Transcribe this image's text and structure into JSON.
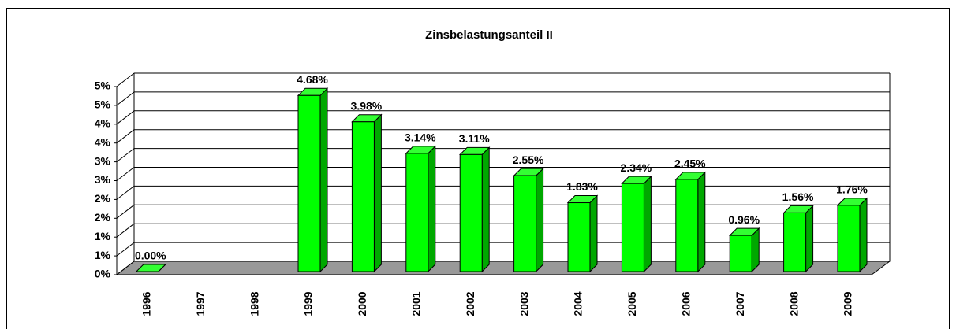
{
  "chart_data": {
    "type": "bar",
    "title": "Zinsbelastungsanteil II",
    "categories": [
      "1996",
      "1997",
      "1998",
      "1999",
      "2000",
      "2001",
      "2002",
      "2003",
      "2004",
      "2005",
      "2006",
      "2007",
      "2008",
      "2009"
    ],
    "values": [
      0.0,
      null,
      null,
      4.68,
      3.98,
      3.14,
      3.11,
      2.55,
      1.83,
      2.34,
      2.45,
      0.96,
      1.56,
      1.76
    ],
    "value_labels": [
      "0.00%",
      null,
      null,
      "4.68%",
      "3.98%",
      "3.14%",
      "3.11%",
      "2.55%",
      "1.83%",
      "2.34%",
      "2.45%",
      "0.96%",
      "1.56%",
      "1.76%"
    ],
    "color": "#00ff00",
    "ylim": [
      0,
      5
    ],
    "yticks": [
      {
        "value": 0,
        "label": "0%"
      },
      {
        "value": 0.5,
        "label": "1%"
      },
      {
        "value": 1,
        "label": "1%"
      },
      {
        "value": 1.5,
        "label": "2%"
      },
      {
        "value": 2,
        "label": "2%"
      },
      {
        "value": 2.5,
        "label": "3%"
      },
      {
        "value": 3,
        "label": "3%"
      },
      {
        "value": 3.5,
        "label": "4%"
      },
      {
        "value": 4,
        "label": "4%"
      },
      {
        "value": 4.5,
        "label": "5%"
      },
      {
        "value": 5,
        "label": "5%"
      }
    ],
    "grid": true
  }
}
